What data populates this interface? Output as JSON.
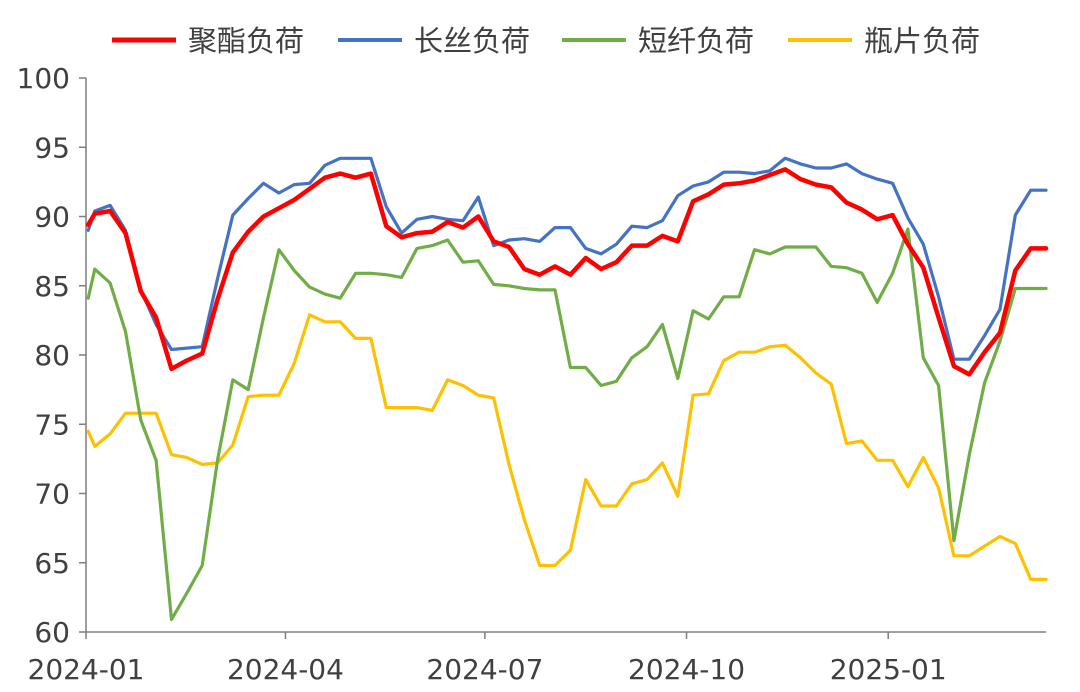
{
  "chart_data": {
    "type": "line",
    "title": "",
    "xlabel": "",
    "ylabel": "",
    "ylim": [
      60,
      100
    ],
    "yticks": [
      60,
      65,
      70,
      75,
      80,
      85,
      90,
      95,
      100
    ],
    "x_tick_labels": [
      "2024-01",
      "2024-04",
      "2024-07",
      "2024-10",
      "2025-01"
    ],
    "x_tick_dates": [
      "2024-01-01",
      "2024-04-01",
      "2024-07-01",
      "2024-10-01",
      "2025-01-01"
    ],
    "x_range": [
      "2024-01-01",
      "2025-03-14"
    ],
    "grid": false,
    "legend_position": "top",
    "x": [
      "2024-01-02",
      "2024-01-05",
      "2024-01-12",
      "2024-01-19",
      "2024-01-26",
      "2024-02-02",
      "2024-02-09",
      "2024-02-16",
      "2024-02-23",
      "2024-03-01",
      "2024-03-08",
      "2024-03-15",
      "2024-03-22",
      "2024-03-29",
      "2024-04-05",
      "2024-04-12",
      "2024-04-19",
      "2024-04-26",
      "2024-05-03",
      "2024-05-10",
      "2024-05-17",
      "2024-05-24",
      "2024-05-31",
      "2024-06-07",
      "2024-06-14",
      "2024-06-21",
      "2024-06-28",
      "2024-07-05",
      "2024-07-12",
      "2024-07-19",
      "2024-07-26",
      "2024-08-02",
      "2024-08-09",
      "2024-08-16",
      "2024-08-23",
      "2024-08-30",
      "2024-09-06",
      "2024-09-13",
      "2024-09-20",
      "2024-09-27",
      "2024-10-04",
      "2024-10-11",
      "2024-10-18",
      "2024-10-25",
      "2024-11-01",
      "2024-11-08",
      "2024-11-15",
      "2024-11-22",
      "2024-11-29",
      "2024-12-06",
      "2024-12-13",
      "2024-12-20",
      "2024-12-27",
      "2025-01-03",
      "2025-01-10",
      "2025-01-17",
      "2025-01-24",
      "2025-01-31",
      "2025-02-07",
      "2025-02-14",
      "2025-02-21",
      "2025-02-28",
      "2025-03-07",
      "2025-03-14"
    ],
    "series": [
      {
        "name": "聚酯负荷",
        "color": "#ff0000",
        "values": [
          89.4,
          90.2,
          90.4,
          88.8,
          84.6,
          82.7,
          79.0,
          79.6,
          80.1,
          84.0,
          87.4,
          88.9,
          90.0,
          90.6,
          91.2,
          92.0,
          92.8,
          93.1,
          92.8,
          93.1,
          89.3,
          88.5,
          88.8,
          88.9,
          89.6,
          89.2,
          90.0,
          88.2,
          87.8,
          86.2,
          85.8,
          86.4,
          85.8,
          87.0,
          86.2,
          86.7,
          87.9,
          87.9,
          88.6,
          88.2,
          91.1,
          91.6,
          92.3,
          92.4,
          92.6,
          93.0,
          93.4,
          92.7,
          92.3,
          92.1,
          91.0,
          90.5,
          89.8,
          90.1,
          88.0,
          86.3,
          82.7,
          79.2,
          78.6,
          80.2,
          81.6,
          86.1,
          87.7,
          87.7
        ]
      },
      {
        "name": "长丝负荷",
        "color": "#4472c4",
        "values": [
          89.0,
          90.4,
          90.8,
          89.0,
          84.7,
          82.2,
          80.4,
          80.5,
          80.6,
          85.5,
          90.1,
          91.3,
          92.4,
          91.7,
          92.3,
          92.4,
          93.7,
          94.2,
          94.2,
          94.2,
          90.7,
          88.8,
          89.8,
          90.0,
          89.8,
          89.7,
          91.4,
          87.9,
          88.3,
          88.4,
          88.2,
          89.2,
          89.2,
          87.7,
          87.3,
          88.0,
          89.3,
          89.2,
          89.7,
          91.5,
          92.2,
          92.5,
          93.2,
          93.2,
          93.1,
          93.3,
          94.2,
          93.8,
          93.5,
          93.5,
          93.8,
          93.1,
          92.7,
          92.4,
          89.9,
          88.0,
          84.2,
          79.7,
          79.7,
          81.4,
          83.3,
          90.1,
          91.9,
          91.9
        ]
      },
      {
        "name": "短纤负荷",
        "color": "#70ad47",
        "values": [
          84.1,
          86.2,
          85.2,
          81.7,
          75.3,
          72.4,
          60.9,
          62.8,
          64.8,
          72.4,
          78.2,
          77.5,
          82.7,
          87.6,
          86.1,
          84.9,
          84.4,
          84.1,
          85.9,
          85.9,
          85.8,
          85.6,
          87.7,
          87.9,
          88.3,
          86.7,
          86.8,
          85.1,
          85.0,
          84.8,
          84.7,
          84.7,
          79.1,
          79.1,
          77.8,
          78.1,
          79.8,
          80.6,
          82.2,
          78.3,
          83.2,
          82.6,
          84.2,
          84.2,
          87.6,
          87.3,
          87.8,
          87.8,
          87.8,
          86.4,
          86.3,
          85.9,
          83.8,
          85.9,
          89.1,
          79.8,
          77.8,
          66.6,
          72.8,
          78.0,
          81.0,
          84.8,
          84.8,
          84.8
        ]
      },
      {
        "name": "瓶片负荷",
        "color": "#ffc000",
        "values": [
          74.5,
          73.4,
          74.3,
          75.8,
          75.8,
          75.8,
          72.8,
          72.6,
          72.1,
          72.2,
          73.5,
          77.0,
          77.1,
          77.1,
          79.4,
          82.9,
          82.4,
          82.4,
          81.2,
          81.2,
          76.2,
          76.2,
          76.2,
          76.0,
          78.2,
          77.8,
          77.1,
          76.9,
          72.1,
          68.1,
          64.8,
          64.8,
          65.9,
          71.0,
          69.1,
          69.1,
          70.7,
          71.0,
          72.2,
          69.8,
          77.1,
          77.2,
          79.6,
          80.2,
          80.2,
          80.6,
          80.7,
          79.8,
          78.7,
          77.9,
          73.6,
          73.8,
          72.4,
          72.4,
          70.5,
          72.6,
          70.4,
          65.5,
          65.5,
          66.2,
          66.9,
          66.4,
          63.8,
          63.8
        ]
      }
    ]
  }
}
